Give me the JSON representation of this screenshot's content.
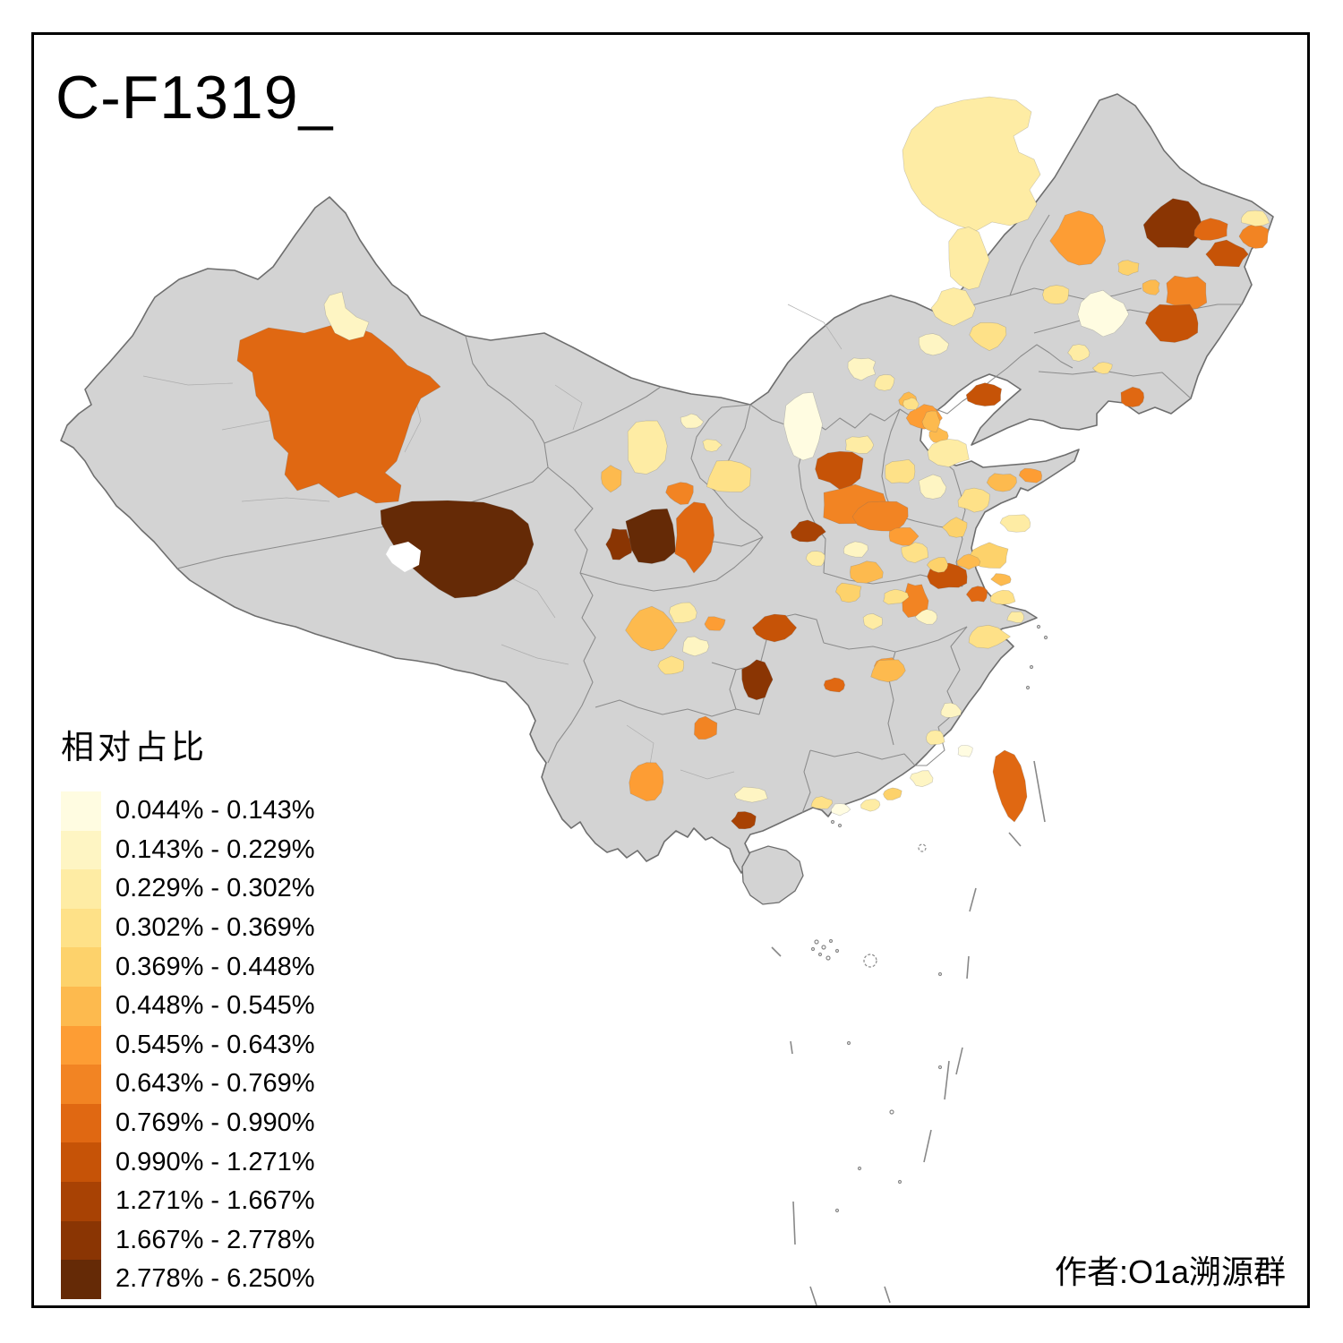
{
  "title": "C-F1319_",
  "attribution": "作者:O1a溯源群",
  "legend": {
    "title": "相对占比",
    "classes": [
      {
        "range": "0.044% - 0.143%",
        "color": "#FFFCE1"
      },
      {
        "range": "0.143% - 0.229%",
        "color": "#FEF5C3"
      },
      {
        "range": "0.229% - 0.302%",
        "color": "#FEECA4"
      },
      {
        "range": "0.302% - 0.369%",
        "color": "#FEE188"
      },
      {
        "range": "0.369% - 0.448%",
        "color": "#FDD26B"
      },
      {
        "range": "0.448% - 0.545%",
        "color": "#FDBA4E"
      },
      {
        "range": "0.545% - 0.643%",
        "color": "#FD9D34"
      },
      {
        "range": "0.643% - 0.769%",
        "color": "#F28423"
      },
      {
        "range": "0.769% - 0.990%",
        "color": "#E06812"
      },
      {
        "range": "0.990% - 1.271%",
        "color": "#C65307"
      },
      {
        "range": "1.271% - 1.667%",
        "color": "#A84204"
      },
      {
        "range": "1.667% - 2.778%",
        "color": "#8A3503"
      },
      {
        "range": "2.778% - 6.250%",
        "color": "#652A06"
      }
    ]
  },
  "map": {
    "background": "#FFFFFF",
    "base_fill": "#D3D3D3",
    "outline_color": "#6E6E6E",
    "province_border_color": "#8C8C8C",
    "prefecture_border_color": "#ADADAD",
    "dash_line_color": "#888888",
    "lake_color": "#FFFFFF"
  }
}
